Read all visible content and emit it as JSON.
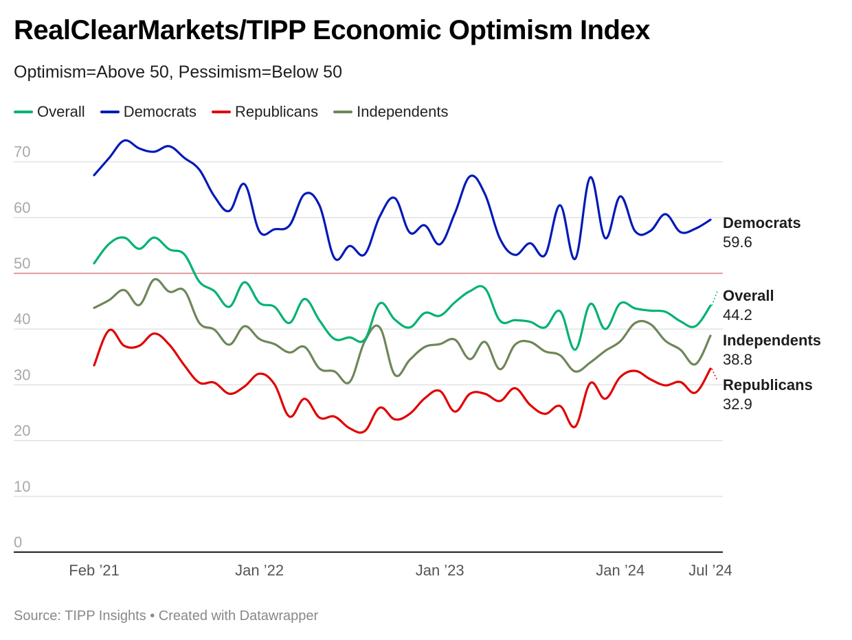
{
  "title": "RealClearMarkets/TIPP Economic Optimism Index",
  "subtitle": "Optimism=Above 50, Pessimism=Below 50",
  "footer": "Source: TIPP Insights • Created with Datawrapper",
  "legend": [
    {
      "label": "Overall",
      "color": "#00b26f"
    },
    {
      "label": "Democrats",
      "color": "#0019b8"
    },
    {
      "label": "Republicans",
      "color": "#e00000"
    },
    {
      "label": "Independents",
      "color": "#6e8658"
    }
  ],
  "chart_data": {
    "type": "line",
    "title": "RealClearMarkets/TIPP Economic Optimism Index",
    "subtitle": "Optimism=Above 50, Pessimism=Below 50",
    "xlabel": "",
    "ylabel": "",
    "ylim": [
      0,
      75
    ],
    "yticks": [
      0,
      10,
      20,
      30,
      40,
      50,
      60,
      70
    ],
    "reference_line": {
      "value": 50,
      "color": "#d77f7f"
    },
    "grid": true,
    "legend_position": "top-left",
    "x": [
      "Feb 2021",
      "Mar 2021",
      "Apr 2021",
      "May 2021",
      "Jun 2021",
      "Jul 2021",
      "Aug 2021",
      "Sep 2021",
      "Oct 2021",
      "Nov 2021",
      "Dec 2021",
      "Jan 2022",
      "Feb 2022",
      "Mar 2022",
      "Apr 2022",
      "May 2022",
      "Jun 2022",
      "Jul 2022",
      "Aug 2022",
      "Sep 2022",
      "Oct 2022",
      "Nov 2022",
      "Dec 2022",
      "Jan 2023",
      "Feb 2023",
      "Mar 2023",
      "Apr 2023",
      "May 2023",
      "Jun 2023",
      "Jul 2023",
      "Aug 2023",
      "Sep 2023",
      "Oct 2023",
      "Nov 2023",
      "Dec 2023",
      "Jan 2024",
      "Feb 2024",
      "Mar 2024",
      "Apr 2024",
      "May 2024",
      "Jun 2024",
      "Jul 2024"
    ],
    "xticks": [
      {
        "index": 0,
        "label": "Feb ’21"
      },
      {
        "index": 11,
        "label": "Jan ’22"
      },
      {
        "index": 23,
        "label": "Jan ’23"
      },
      {
        "index": 35,
        "label": "Jan ’24"
      },
      {
        "index": 41,
        "label": "Jul ’24"
      }
    ],
    "series": [
      {
        "name": "Democrats",
        "color": "#0019b8",
        "end_label": "Democrats",
        "end_value": "59.6",
        "values": [
          67.6,
          70.7,
          73.8,
          72.4,
          71.8,
          72.8,
          70.7,
          68.6,
          63.8,
          61.2,
          66.0,
          57.5,
          57.9,
          58.6,
          64.2,
          62.1,
          52.7,
          54.9,
          53.4,
          60.2,
          63.5,
          57.3,
          58.6,
          55.2,
          60.8,
          67.4,
          64.2,
          56.2,
          53.3,
          55.4,
          53.3,
          62.2,
          52.6,
          67.2,
          56.3,
          63.8,
          57.5,
          57.6,
          60.6,
          57.4,
          58.0,
          59.6
        ]
      },
      {
        "name": "Overall",
        "color": "#00b26f",
        "end_label": "Overall",
        "end_value": "44.2",
        "values": [
          51.8,
          55.3,
          56.4,
          54.4,
          56.4,
          54.3,
          53.4,
          48.5,
          46.8,
          44.0,
          48.4,
          44.7,
          44.0,
          41.1,
          45.4,
          41.5,
          38.2,
          38.5,
          38.1,
          44.6,
          41.7,
          40.3,
          42.9,
          42.4,
          44.8,
          46.8,
          47.3,
          41.5,
          41.6,
          41.3,
          40.3,
          43.2,
          36.3,
          44.5,
          40.0,
          44.6,
          43.7,
          43.3,
          43.1,
          41.4,
          40.5,
          44.2
        ]
      },
      {
        "name": "Independents",
        "color": "#6e8658",
        "end_label": "Independents",
        "end_value": "38.8",
        "values": [
          43.8,
          45.2,
          47.0,
          44.3,
          48.9,
          46.7,
          46.9,
          41.1,
          39.9,
          37.2,
          40.5,
          38.2,
          37.3,
          35.8,
          36.8,
          32.9,
          32.4,
          30.5,
          37.8,
          40.3,
          31.8,
          34.5,
          36.8,
          37.3,
          38.1,
          34.6,
          37.7,
          32.8,
          37.2,
          37.7,
          36.0,
          35.3,
          32.4,
          34.0,
          36.1,
          37.8,
          41.1,
          40.9,
          37.9,
          36.3,
          33.7,
          38.8
        ]
      },
      {
        "name": "Republicans",
        "color": "#e00000",
        "end_label": "Republicans",
        "end_value": "32.9",
        "values": [
          33.5,
          39.8,
          37.0,
          37.0,
          39.2,
          37.2,
          33.5,
          30.4,
          30.4,
          28.4,
          29.7,
          32.0,
          30.1,
          24.3,
          27.5,
          24.1,
          24.3,
          22.2,
          21.7,
          25.9,
          23.8,
          24.8,
          27.6,
          28.9,
          25.2,
          28.4,
          28.4,
          27.1,
          29.4,
          26.4,
          24.8,
          26.2,
          22.5,
          30.3,
          27.5,
          31.4,
          32.5,
          31.0,
          29.9,
          30.5,
          28.6,
          32.9
        ]
      }
    ]
  }
}
